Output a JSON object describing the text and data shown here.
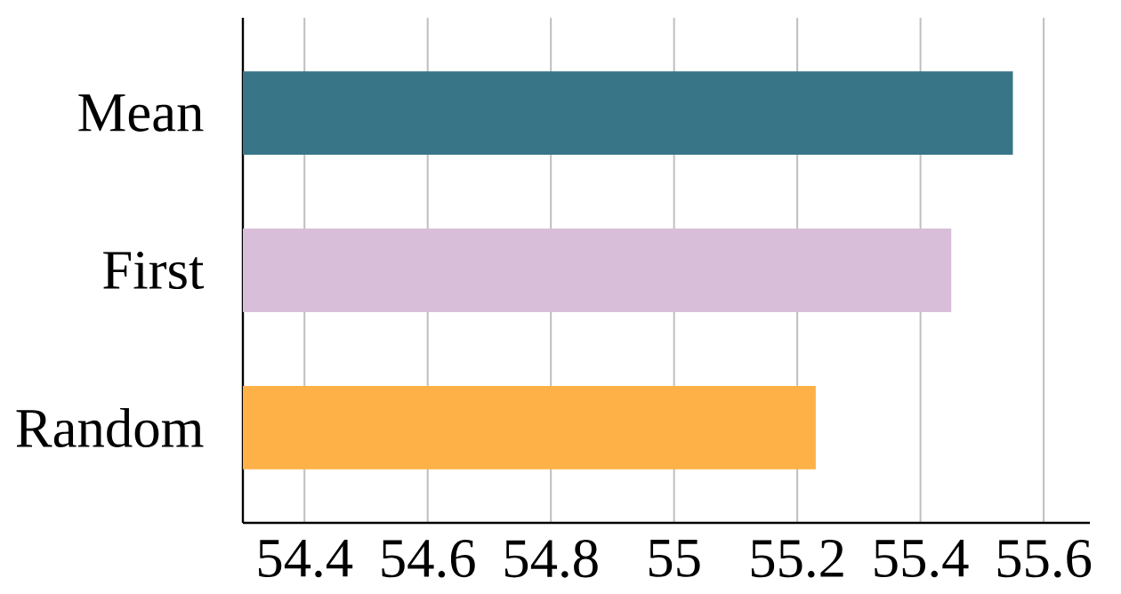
{
  "chart_data": {
    "type": "bar",
    "orientation": "horizontal",
    "categories": [
      "Mean",
      "First",
      "Random"
    ],
    "values": [
      55.55,
      55.45,
      55.23
    ],
    "colors": [
      "#377587",
      "#d8bed9",
      "#fdb147"
    ],
    "xlim": [
      54.3,
      55.675
    ],
    "xticks": [
      54.4,
      54.6,
      54.8,
      55,
      55.2,
      55.4,
      55.6
    ],
    "grid": "x"
  }
}
